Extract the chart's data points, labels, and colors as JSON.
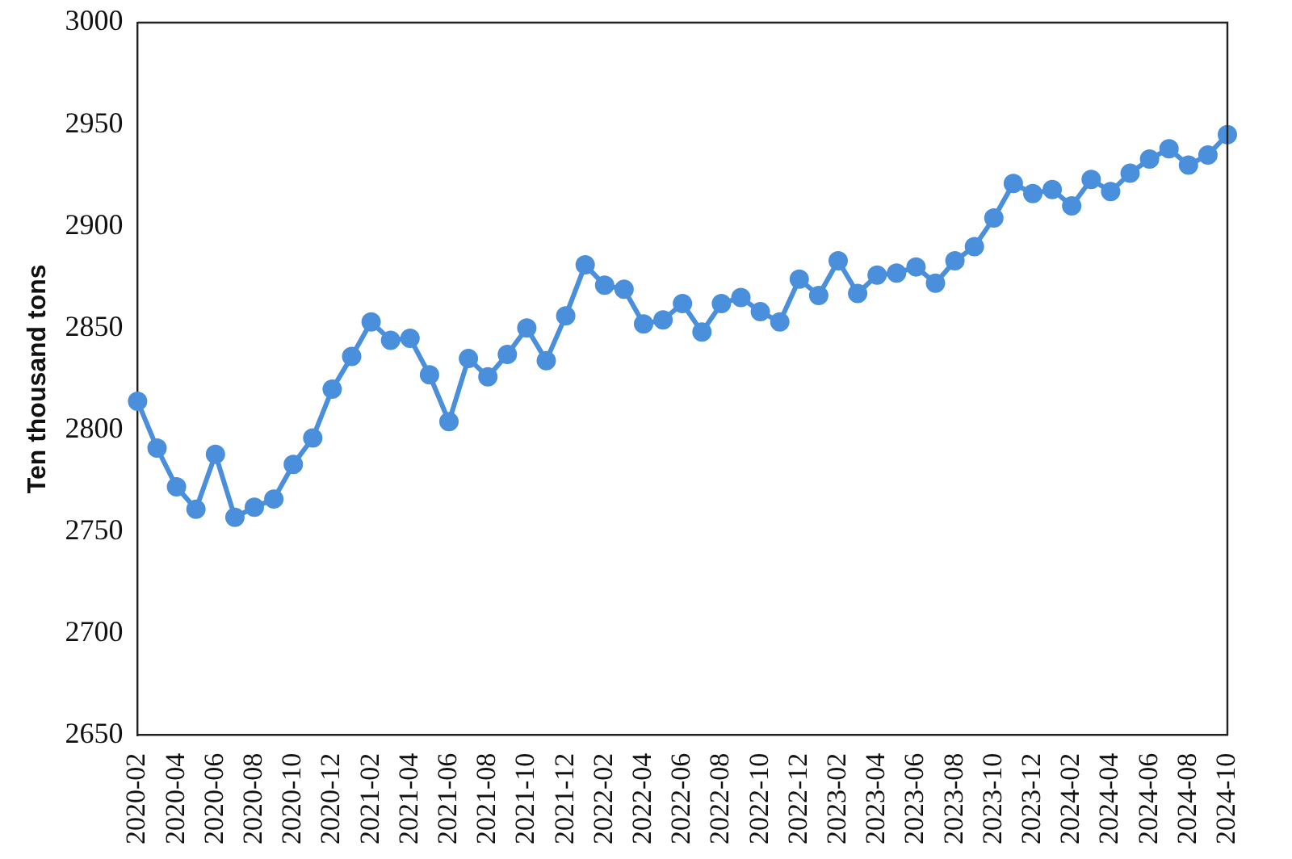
{
  "chart_data": {
    "type": "line",
    "ylabel": "Ten thousand tons",
    "categories": [
      "2020-02",
      null,
      "2020-04",
      null,
      "2020-06",
      null,
      "2020-08",
      null,
      "2020-10",
      null,
      "2020-12",
      null,
      "2021-02",
      null,
      "2021-04",
      null,
      "2021-06",
      null,
      "2021-08",
      null,
      "2021-10",
      null,
      "2021-12",
      null,
      "2022-02",
      null,
      "2022-04",
      null,
      "2022-06",
      null,
      "2022-08",
      null,
      "2022-10",
      null,
      "2022-12",
      null,
      "2023-02",
      null,
      "2023-04",
      null,
      "2023-06",
      null,
      "2023-08",
      null,
      "2023-10",
      null,
      "2023-12",
      null,
      "2024-02",
      null,
      "2024-04",
      null,
      "2024-06",
      null,
      "2024-08",
      null,
      "2024-10"
    ],
    "series": [
      {
        "color": "#4a8fdb",
        "values": [
          2814,
          2791,
          2772,
          2761,
          2788,
          2757,
          2762,
          2766,
          2783,
          2796,
          2820,
          2836,
          2853,
          2844,
          2845,
          2827,
          2804,
          2835,
          2826,
          2837,
          2850,
          2834,
          2856,
          2881,
          2871,
          2869,
          2852,
          2854,
          2862,
          2848,
          2862,
          2865,
          2858,
          2853,
          2874,
          2866,
          2883,
          2867,
          2876,
          2877,
          2880,
          2872,
          2883,
          2890,
          2904,
          2921,
          2916,
          2918,
          2910,
          2923,
          2917,
          2926,
          2933,
          2938,
          2930,
          2935,
          2945
        ]
      }
    ],
    "ylim": [
      2650,
      3000
    ],
    "yticks": [
      2650,
      2700,
      2750,
      2800,
      2850,
      2900,
      2950,
      3000
    ],
    "grid": false,
    "legend": false,
    "marker": "circle",
    "line_style": "solid"
  }
}
